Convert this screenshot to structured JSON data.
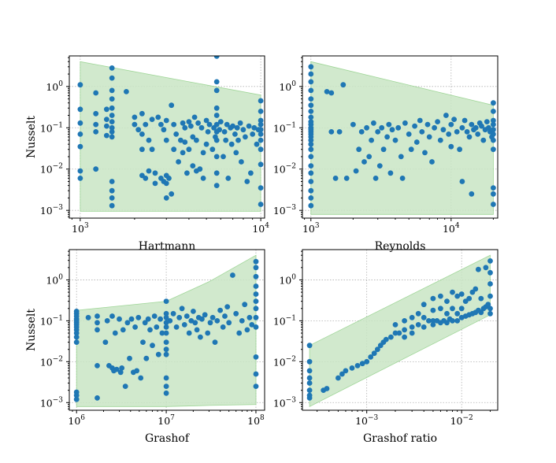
{
  "figure": {
    "background": "#ffffff",
    "point_color": "#1f77b4",
    "band_color": "#c9e6c5"
  },
  "chart_data": [
    {
      "type": "scatter",
      "id": "hartmann",
      "xlabel": "Hartmann",
      "ylabel": "Nusselt",
      "xscale": "log",
      "yscale": "log",
      "xlim": [
        870,
        10500
      ],
      "ylim": [
        0.00065,
        5.5
      ],
      "xticks": [
        {
          "value": 1000,
          "base": "10",
          "exp": "3"
        },
        {
          "value": 10000,
          "base": "10",
          "exp": "4"
        }
      ],
      "yticks": [
        {
          "value": 0.001,
          "base": "10",
          "exp": "−3"
        },
        {
          "value": 0.01,
          "base": "10",
          "exp": "−2"
        },
        {
          "value": 0.1,
          "base": "10",
          "exp": "−1"
        },
        {
          "value": 1,
          "base": "10",
          "exp": "0"
        }
      ],
      "grid": true,
      "band": {
        "x": [
          1000,
          10000
        ],
        "upper": [
          4.0,
          0.62
        ],
        "lower": [
          0.00095,
          0.00095
        ]
      },
      "x": [
        1000,
        1000,
        1000,
        1000,
        1000,
        1000,
        1000,
        1220,
        1220,
        1220,
        1220,
        1220,
        1400,
        1400,
        1400,
        1400,
        1500,
        1500,
        1500,
        1500,
        1500,
        1500,
        1500,
        1500,
        1500,
        1500,
        1500,
        1500,
        1500,
        1500,
        1800,
        2000,
        2000,
        2100,
        2200,
        2200,
        2200,
        2200,
        2300,
        2300,
        2400,
        2400,
        2500,
        2500,
        2600,
        2600,
        2700,
        2800,
        2800,
        2900,
        2900,
        3000,
        3000,
        3000,
        3000,
        3000,
        3100,
        3200,
        3200,
        3300,
        3300,
        3400,
        3500,
        3600,
        3700,
        3700,
        3800,
        3800,
        3900,
        4000,
        4000,
        4100,
        4200,
        4200,
        4300,
        4400,
        4400,
        4500,
        4600,
        4700,
        4800,
        4800,
        5000,
        5000,
        5100,
        5200,
        5400,
        5500,
        5600,
        5700,
        5700,
        5700,
        5700,
        5700,
        5700,
        5700,
        5700,
        5700,
        5700,
        5700,
        5900,
        6000,
        6200,
        6300,
        6400,
        6500,
        6600,
        6800,
        6900,
        7000,
        7200,
        7300,
        7400,
        7500,
        7700,
        7800,
        8000,
        8200,
        8400,
        8600,
        8800,
        9000,
        9200,
        9500,
        9700,
        10000,
        10000,
        10000,
        10000,
        10000,
        10000,
        10000,
        10000,
        10000,
        10000,
        10000
      ],
      "y": [
        1.1,
        0.28,
        0.13,
        0.07,
        0.035,
        0.009,
        0.006,
        0.7,
        0.22,
        0.12,
        0.08,
        0.01,
        0.28,
        0.16,
        0.11,
        0.065,
        2.8,
        1.6,
        0.8,
        0.5,
        0.3,
        0.2,
        0.14,
        0.1,
        0.08,
        0.06,
        0.005,
        0.003,
        0.002,
        0.0013,
        0.75,
        0.18,
        0.12,
        0.09,
        0.22,
        0.07,
        0.03,
        0.007,
        0.12,
        0.006,
        0.05,
        0.009,
        0.16,
        0.03,
        0.008,
        0.0045,
        0.18,
        0.12,
        0.006,
        0.09,
        0.005,
        0.15,
        0.05,
        0.007,
        0.0045,
        0.002,
        0.006,
        0.35,
        0.0025,
        0.12,
        0.03,
        0.07,
        0.015,
        0.05,
        0.13,
        0.025,
        0.1,
        0.045,
        0.008,
        0.14,
        0.03,
        0.11,
        0.06,
        0.012,
        0.18,
        0.05,
        0.009,
        0.13,
        0.01,
        0.1,
        0.025,
        0.006,
        0.15,
        0.04,
        0.08,
        0.12,
        0.03,
        0.1,
        0.06,
        5.4,
        1.3,
        0.8,
        0.3,
        0.2,
        0.12,
        0.08,
        0.05,
        0.02,
        0.008,
        0.004,
        0.09,
        0.14,
        0.02,
        0.08,
        0.05,
        0.12,
        0.006,
        0.1,
        0.04,
        0.11,
        0.07,
        0.025,
        0.1,
        0.05,
        0.13,
        0.015,
        0.09,
        0.06,
        0.005,
        0.11,
        0.008,
        0.07,
        0.1,
        0.04,
        0.09,
        0.45,
        0.25,
        0.15,
        0.12,
        0.09,
        0.07,
        0.05,
        0.03,
        0.013,
        0.0035,
        0.0014
      ]
    },
    {
      "type": "scatter",
      "id": "reynolds",
      "xlabel": "Reynolds",
      "ylabel": "",
      "xscale": "log",
      "yscale": "log",
      "xlim": [
        870,
        21500
      ],
      "ylim": [
        0.00065,
        5.5
      ],
      "xticks": [
        {
          "value": 1000,
          "base": "10",
          "exp": "3"
        },
        {
          "value": 10000,
          "base": "10",
          "exp": "4"
        }
      ],
      "yticks": [
        {
          "value": 0.001,
          "base": "10",
          "exp": "−3"
        },
        {
          "value": 0.01,
          "base": "10",
          "exp": "−2"
        },
        {
          "value": 0.1,
          "base": "10",
          "exp": "−1"
        },
        {
          "value": 1,
          "base": "10",
          "exp": "0"
        }
      ],
      "grid": true,
      "band": {
        "x": [
          1000,
          20000
        ],
        "upper": [
          4.0,
          0.35
        ],
        "lower": [
          0.0008,
          0.0008
        ]
      },
      "x": [
        1000,
        1000,
        1000,
        1000,
        1000,
        1000,
        1000,
        1000,
        1000,
        1000,
        1000,
        1000,
        1000,
        1000,
        1000,
        1000,
        1000,
        1000,
        1000,
        1000,
        1000,
        1000,
        1000,
        1000,
        1000,
        1300,
        1400,
        1400,
        1500,
        1600,
        1700,
        1800,
        2000,
        2100,
        2200,
        2300,
        2400,
        2500,
        2600,
        2700,
        2800,
        2900,
        3000,
        3100,
        3200,
        3300,
        3500,
        3600,
        3700,
        3800,
        4000,
        4200,
        4400,
        4500,
        4700,
        5000,
        5200,
        5500,
        5700,
        6000,
        6200,
        6500,
        6800,
        7000,
        7300,
        7600,
        8000,
        8400,
        8800,
        9200,
        9600,
        10000,
        10000,
        10500,
        11000,
        11500,
        12000,
        12000,
        12500,
        13000,
        13500,
        14000,
        14000,
        14500,
        15000,
        15500,
        16000,
        16500,
        17000,
        17500,
        18000,
        18500,
        19000,
        19500,
        20000,
        20000,
        20000,
        20000,
        20000,
        20000,
        20000,
        20000,
        20000,
        20000,
        20000
      ],
      "y": [
        3.0,
        2.0,
        1.3,
        0.8,
        0.5,
        0.35,
        0.25,
        0.18,
        0.14,
        0.12,
        0.1,
        0.09,
        0.08,
        0.07,
        0.06,
        0.05,
        0.04,
        0.03,
        0.02,
        0.012,
        0.008,
        0.005,
        0.003,
        0.002,
        0.0013,
        0.75,
        0.7,
        0.08,
        0.006,
        0.08,
        1.1,
        0.006,
        0.12,
        0.009,
        0.03,
        0.08,
        0.015,
        0.1,
        0.02,
        0.05,
        0.13,
        0.006,
        0.08,
        0.012,
        0.1,
        0.03,
        0.06,
        0.12,
        0.008,
        0.09,
        0.05,
        0.1,
        0.02,
        0.006,
        0.13,
        0.07,
        0.03,
        0.11,
        0.045,
        0.15,
        0.08,
        0.025,
        0.12,
        0.06,
        0.015,
        0.1,
        0.14,
        0.05,
        0.09,
        0.2,
        0.07,
        0.12,
        0.035,
        0.16,
        0.08,
        0.03,
        0.1,
        0.005,
        0.15,
        0.08,
        0.06,
        0.12,
        0.0025,
        0.09,
        0.1,
        0.07,
        0.13,
        0.11,
        0.05,
        0.09,
        0.14,
        0.1,
        0.08,
        0.06,
        0.4,
        0.25,
        0.15,
        0.12,
        0.09,
        0.07,
        0.05,
        0.03,
        0.0035,
        0.0025,
        0.0014
      ]
    },
    {
      "type": "scatter",
      "id": "grashof",
      "xlabel": "Grashof",
      "ylabel": "Nusselt",
      "xscale": "log",
      "yscale": "log",
      "xlim": [
        830000,
        125000000
      ],
      "ylim": [
        0.00065,
        5.5
      ],
      "xticks": [
        {
          "value": 1000000,
          "base": "10",
          "exp": "6"
        },
        {
          "value": 10000000,
          "base": "10",
          "exp": "7"
        },
        {
          "value": 100000000,
          "base": "10",
          "exp": "8"
        }
      ],
      "yticks": [
        {
          "value": 0.001,
          "base": "10",
          "exp": "−3"
        },
        {
          "value": 0.01,
          "base": "10",
          "exp": "−2"
        },
        {
          "value": 0.1,
          "base": "10",
          "exp": "−1"
        },
        {
          "value": 1,
          "base": "10",
          "exp": "0"
        }
      ],
      "grid": true,
      "band": {
        "x": [
          1000000,
          10000000,
          30000000,
          100000000
        ],
        "upper": [
          0.18,
          0.3,
          0.9,
          4.0
        ],
        "lower": [
          0.0008,
          0.0008,
          0.00085,
          0.0009
        ]
      },
      "x": [
        1000000,
        1000000,
        1000000,
        1000000,
        1000000,
        1000000,
        1000000,
        1000000,
        1000000,
        1000000,
        1000000,
        1000000,
        1000000,
        1000000,
        1000000,
        1350000,
        1700000,
        1700000,
        1700000,
        1700000,
        1700000,
        2100000,
        2200000,
        2300000,
        2500000,
        2500000,
        2600000,
        2700000,
        2800000,
        3000000,
        3100000,
        3200000,
        3300000,
        3500000,
        3700000,
        3900000,
        4100000,
        4300000,
        4500000,
        4700000,
        4900000,
        5200000,
        5500000,
        5800000,
        6000000,
        6300000,
        6600000,
        7000000,
        7400000,
        7800000,
        8200000,
        8600000,
        9000000,
        10000000,
        10000000,
        10000000,
        10000000,
        10000000,
        10000000,
        10000000,
        10000000,
        10000000,
        10000000,
        10000000,
        10000000,
        11000000,
        12000000,
        13000000,
        14000000,
        15000000,
        16000000,
        17000000,
        18000000,
        19000000,
        20000000,
        21000000,
        22000000,
        23000000,
        24000000,
        25000000,
        27000000,
        29000000,
        31000000,
        33000000,
        35000000,
        37000000,
        40000000,
        43000000,
        45000000,
        48000000,
        50000000,
        55000000,
        60000000,
        65000000,
        70000000,
        75000000,
        80000000,
        85000000,
        90000000,
        100000000,
        100000000,
        100000000,
        100000000,
        100000000,
        100000000,
        100000000,
        100000000,
        100000000,
        100000000,
        100000000,
        100000000
      ],
      "y": [
        0.17,
        0.15,
        0.13,
        0.11,
        0.1,
        0.09,
        0.08,
        0.07,
        0.06,
        0.05,
        0.04,
        0.03,
        0.0018,
        0.0015,
        0.0012,
        0.12,
        0.13,
        0.09,
        0.06,
        0.008,
        0.0013,
        0.03,
        0.1,
        0.008,
        0.13,
        0.007,
        0.006,
        0.05,
        0.0065,
        0.11,
        0.0055,
        0.007,
        0.06,
        0.0025,
        0.09,
        0.012,
        0.11,
        0.0055,
        0.07,
        0.006,
        0.12,
        0.004,
        0.03,
        0.09,
        0.012,
        0.11,
        0.06,
        0.025,
        0.13,
        0.07,
        0.015,
        0.11,
        0.05,
        0.3,
        0.15,
        0.12,
        0.09,
        0.07,
        0.05,
        0.03,
        0.02,
        0.015,
        0.004,
        0.0025,
        0.0017,
        0.1,
        0.15,
        0.07,
        0.12,
        0.2,
        0.08,
        0.13,
        0.05,
        0.1,
        0.17,
        0.09,
        0.06,
        0.12,
        0.04,
        0.11,
        0.14,
        0.05,
        0.09,
        0.12,
        0.03,
        0.1,
        0.18,
        0.07,
        0.13,
        0.22,
        0.09,
        1.3,
        0.15,
        0.05,
        0.1,
        0.25,
        0.06,
        0.12,
        0.08,
        2.8,
        2.0,
        1.2,
        0.7,
        0.45,
        0.3,
        0.2,
        0.12,
        0.07,
        0.013,
        0.005,
        0.0025
      ]
    },
    {
      "type": "scatter",
      "id": "grashof-ratio",
      "xlabel": "Grashof ratio",
      "ylabel": "",
      "xscale": "log",
      "yscale": "log",
      "xlim": [
        0.00021,
        0.024
      ],
      "ylim": [
        0.00065,
        5.5
      ],
      "xticks": [
        {
          "value": 0.001,
          "base": "10",
          "exp": "−3"
        },
        {
          "value": 0.01,
          "base": "10",
          "exp": "−2"
        }
      ],
      "yticks": [
        {
          "value": 0.001,
          "base": "10",
          "exp": "−3"
        },
        {
          "value": 0.01,
          "base": "10",
          "exp": "−2"
        },
        {
          "value": 0.1,
          "base": "10",
          "exp": "−1"
        },
        {
          "value": 1,
          "base": "10",
          "exp": "0"
        }
      ],
      "grid": true,
      "band": {
        "x": [
          0.00025,
          0.02
        ],
        "upper": [
          0.025,
          4.0
        ],
        "lower": [
          0.0008,
          0.14
        ]
      },
      "x": [
        0.00025,
        0.00025,
        0.00025,
        0.00025,
        0.00025,
        0.00025,
        0.00025,
        0.00025,
        0.00035,
        0.00038,
        0.0005,
        0.00055,
        0.0006,
        0.0007,
        0.0008,
        0.0009,
        0.001,
        0.0011,
        0.0012,
        0.0013,
        0.0014,
        0.0015,
        0.0016,
        0.0018,
        0.002,
        0.002,
        0.0022,
        0.0025,
        0.0025,
        0.0025,
        0.003,
        0.003,
        0.003,
        0.0035,
        0.0035,
        0.004,
        0.004,
        0.004,
        0.0045,
        0.005,
        0.005,
        0.005,
        0.005,
        0.0055,
        0.006,
        0.006,
        0.006,
        0.0065,
        0.007,
        0.007,
        0.007,
        0.0075,
        0.008,
        0.008,
        0.008,
        0.009,
        0.009,
        0.009,
        0.01,
        0.01,
        0.01,
        0.011,
        0.011,
        0.012,
        0.012,
        0.013,
        0.013,
        0.014,
        0.014,
        0.015,
        0.015,
        0.016,
        0.016,
        0.017,
        0.018,
        0.018,
        0.019,
        0.02,
        0.02,
        0.02,
        0.02,
        0.02,
        0.02
      ],
      "y": [
        0.025,
        0.01,
        0.006,
        0.004,
        0.003,
        0.002,
        0.0015,
        0.0013,
        0.002,
        0.0022,
        0.004,
        0.005,
        0.006,
        0.007,
        0.008,
        0.009,
        0.01,
        0.013,
        0.016,
        0.02,
        0.025,
        0.03,
        0.035,
        0.04,
        0.08,
        0.05,
        0.05,
        0.1,
        0.06,
        0.04,
        0.12,
        0.07,
        0.05,
        0.15,
        0.08,
        0.25,
        0.12,
        0.07,
        0.1,
        0.35,
        0.18,
        0.1,
        0.08,
        0.1,
        0.4,
        0.2,
        0.09,
        0.1,
        0.3,
        0.15,
        0.09,
        0.11,
        0.5,
        0.2,
        0.1,
        0.4,
        0.15,
        0.1,
        0.45,
        0.2,
        0.12,
        0.3,
        0.13,
        0.35,
        0.14,
        0.5,
        0.15,
        0.6,
        0.16,
        1.8,
        0.18,
        0.35,
        0.16,
        0.2,
        2.0,
        0.22,
        0.25,
        2.9,
        1.5,
        0.8,
        0.4,
        0.2,
        0.15
      ]
    }
  ]
}
